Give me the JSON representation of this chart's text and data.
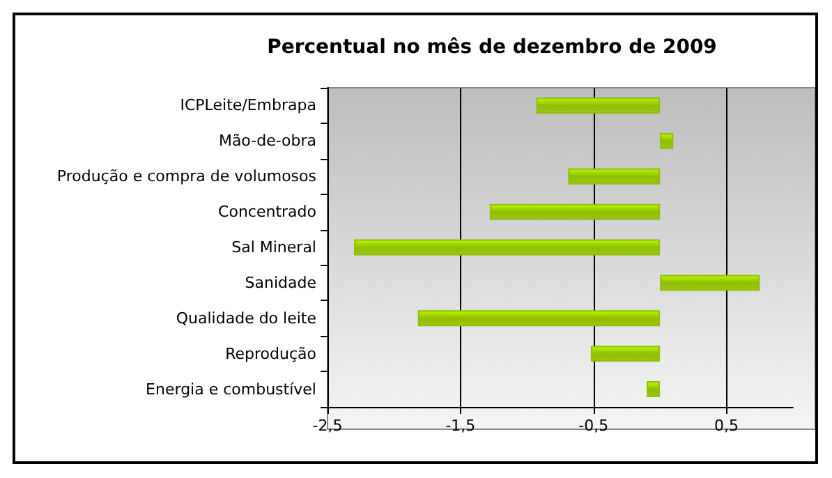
{
  "chart_data": {
    "type": "bar",
    "orientation": "horizontal",
    "title": "Percentual no mês de dezembro de 2009",
    "categories": [
      "ICPLeite/Embrapa",
      "Mão-de-obra",
      "Produção e compra de volumosos",
      "Concentrado",
      "Sal Mineral",
      "Sanidade",
      "Qualidade do leite",
      "Reprodução",
      "Energia e combustível"
    ],
    "values": [
      -0.93,
      0.1,
      -0.69,
      -1.28,
      -2.3,
      0.75,
      -1.82,
      -0.52,
      -0.1
    ],
    "color": "#8fbf00",
    "xlim": [
      -2.5,
      1
    ],
    "xticks": [
      {
        "value": -2.5,
        "label": "-2,5"
      },
      {
        "value": -1.5,
        "label": "-1,5"
      },
      {
        "value": -0.5,
        "label": "-0,5"
      },
      {
        "value": 0.5,
        "label": "0,5"
      }
    ],
    "grid": "x"
  }
}
